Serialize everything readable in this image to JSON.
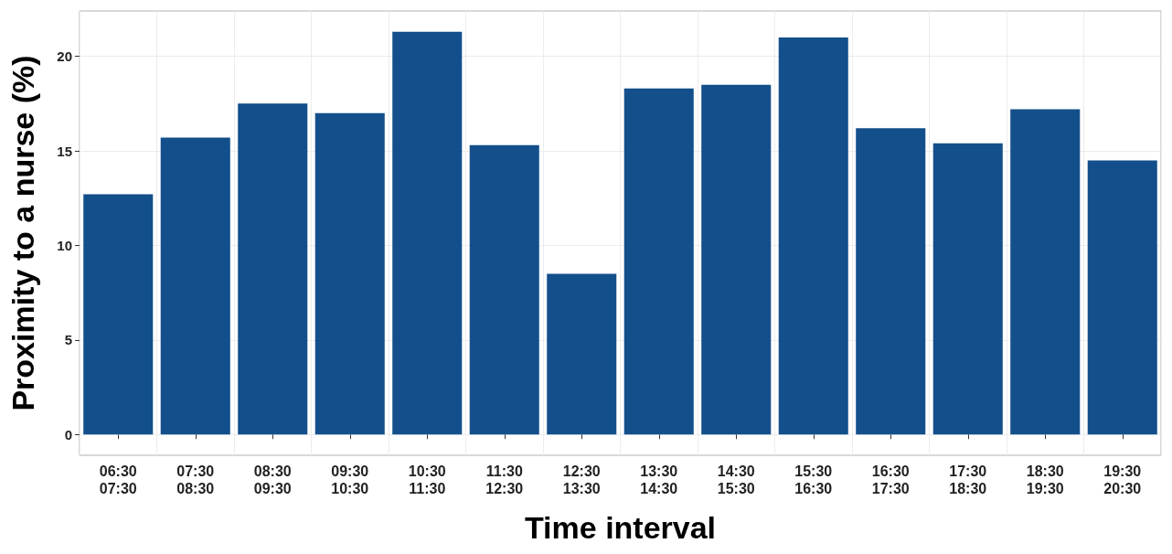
{
  "chart_data": {
    "type": "bar",
    "xlabel": "Time interval",
    "ylabel": "Proximity to a nurse (%)",
    "categories": [
      "06:30\n07:30",
      "07:30\n08:30",
      "08:30\n09:30",
      "09:30\n10:30",
      "10:30\n11:30",
      "11:30\n12:30",
      "12:30\n13:30",
      "13:30\n14:30",
      "14:30\n15:30",
      "15:30\n16:30",
      "16:30\n17:30",
      "17:30\n18:30",
      "18:30\n19:30",
      "19:30\n20:30"
    ],
    "values": [
      12.7,
      15.7,
      17.5,
      17.0,
      21.3,
      15.3,
      8.5,
      18.3,
      18.5,
      21.0,
      16.2,
      15.4,
      17.2,
      14.5
    ],
    "color": "#134f8b",
    "ylim": [
      -1.1,
      22.4
    ],
    "yticks": [
      0,
      5,
      10,
      15,
      20
    ],
    "grid": true
  }
}
